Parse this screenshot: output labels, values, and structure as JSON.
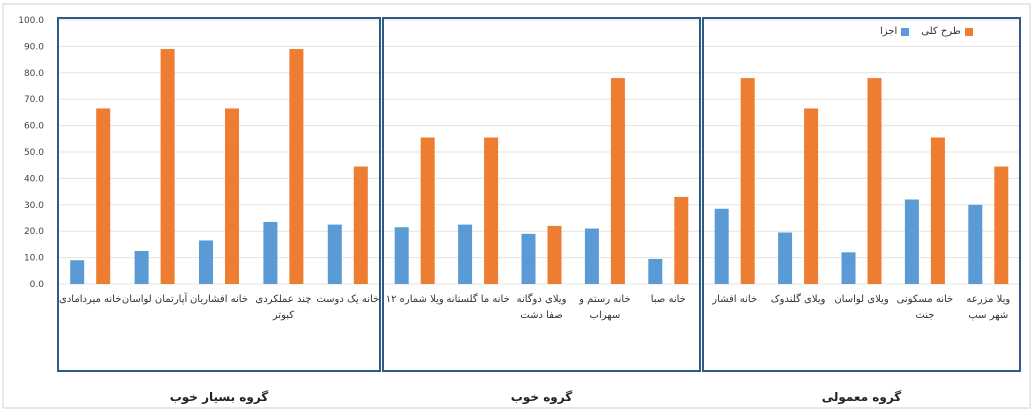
{
  "chart_data": {
    "type": "bar",
    "ylim": [
      0,
      100
    ],
    "yticks": [
      "0.0",
      "10.0",
      "20.0",
      "30.0",
      "40.0",
      "50.0",
      "60.0",
      "70.0",
      "80.0",
      "90.0",
      "100.0"
    ],
    "categories": [
      [
        "خانه میردامادی"
      ],
      [
        "آپارتمان لواسان"
      ],
      [
        "خانه افشاریان"
      ],
      [
        "چند عملکردی",
        "کبوتر"
      ],
      [
        "خانه یک دوست"
      ],
      [
        "ویلا شماره ۱۲"
      ],
      [
        "خانه ما گلستانه"
      ],
      [
        "ویلای دوگانه",
        "صفا دشت"
      ],
      [
        "خانه رستم و",
        "سهراب"
      ],
      [
        "خانه صبا"
      ],
      [
        "خانه افشار"
      ],
      [
        "ویلای گلندوک"
      ],
      [
        "ویلای لواسان"
      ],
      [
        "خانه مسکونی",
        "جنت"
      ],
      [
        "ویلا مزرعه",
        "شهر سپ"
      ]
    ],
    "series": [
      {
        "name": "اجزا",
        "color": "#5b9bd5",
        "values": [
          9,
          12.5,
          16.5,
          23.5,
          22.5,
          21.5,
          22.5,
          19,
          21,
          9.5,
          28.5,
          19.5,
          12,
          32,
          30
        ]
      },
      {
        "name": "طرح کلی",
        "color": "#ed7d31",
        "values": [
          66.5,
          89,
          66.5,
          89,
          44.5,
          55.5,
          55.5,
          22,
          78,
          33,
          78,
          66.5,
          78,
          55.5,
          44.5
        ]
      }
    ],
    "groups": [
      {
        "label": "گروه بسیار خوب",
        "count": 5
      },
      {
        "label": "گروه خوب",
        "count": 5
      },
      {
        "label": "گروه معمولی",
        "count": 5
      }
    ],
    "legend_position": "top-right"
  }
}
